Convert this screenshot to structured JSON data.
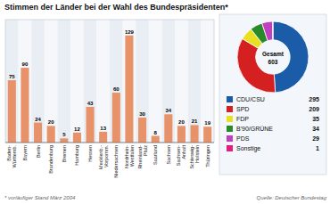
{
  "chart_data": [
    {
      "type": "bar",
      "title": "Stimmen der Länder bei der Wahl des Bundespräsidenten*",
      "categories": [
        "Baden-\nWürttemb.",
        "Bayern",
        "Berlin",
        "Brandenburg",
        "Bremen",
        "Hamburg",
        "Hessen",
        "Mecklenb.-\nVorpomm.",
        "Niedersachsen",
        "Nordrhein-\nWestfalen",
        "Rheinland-\nPfalz",
        "Saarland",
        "Sachsen",
        "Sachsen-\nAnhalt",
        "Schleswig-\nHolstein",
        "Thüringen"
      ],
      "values": [
        75,
        90,
        24,
        20,
        5,
        12,
        43,
        13,
        60,
        129,
        30,
        8,
        34,
        20,
        21,
        19
      ],
      "color": "#e8926a",
      "ylim": [
        0,
        148
      ],
      "tick_labels": "x",
      "data_labels": true,
      "annotations": [
        "* vorläufiger Stand März 2004",
        "Quelle: Deutscher Bundestag"
      ]
    },
    {
      "type": "pie",
      "categories": [
        "CDU/CSU",
        "SPD",
        "FDP",
        "B'90/GRÜNE",
        "PDS",
        "Sonstige"
      ],
      "values": [
        295,
        209,
        35,
        34,
        29,
        1
      ],
      "colors": [
        "#1a5ca8",
        "#d42020",
        "#e8e020",
        "#2a8a2a",
        "#c040c0",
        "#e02080"
      ],
      "total": 603,
      "annotations": [
        "Gesamt"
      ],
      "data_labels": true,
      "legend": "bottom"
    }
  ]
}
